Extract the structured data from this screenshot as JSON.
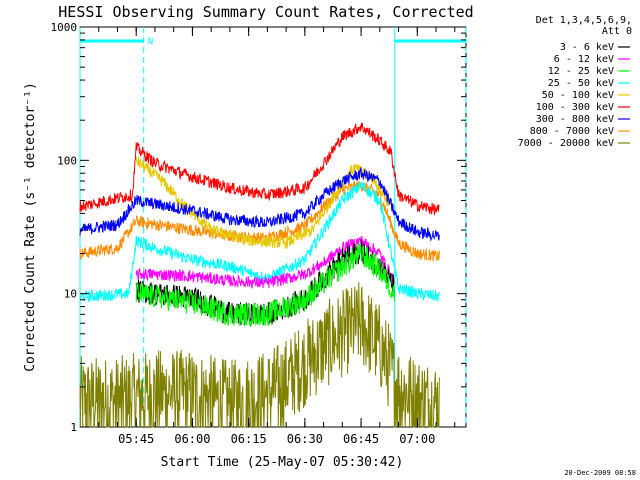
{
  "chart_data": {
    "type": "line",
    "title": "HESSI Observing Summary Count Rates, Corrected",
    "xlabel": "Start Time (25-May-07 05:30:42)",
    "ylabel": "Corrected Count Rate (s⁻¹ detector⁻¹)",
    "y_scale": "log",
    "ylim": [
      1,
      1000
    ],
    "xlim": [
      "05:30",
      "07:13"
    ],
    "x_ticks": [
      "05:45",
      "06:00",
      "06:15",
      "06:30",
      "06:45",
      "07:00"
    ],
    "y_ticks": [
      "1",
      "10",
      "100",
      "1000"
    ],
    "grid": false,
    "legend_placement": "right",
    "legend_header": [
      "Det 1,3,4,5,6,9,",
      "Att 0"
    ],
    "timestamp": "20-Dec-2009 08:58",
    "annotations": [
      {
        "text": "N",
        "time": "05:47"
      }
    ],
    "night_intervals": [
      {
        "start": "05:30",
        "end": "05:47"
      },
      {
        "start": "06:54",
        "end": "07:13"
      }
    ],
    "series": [
      {
        "name": "3 - 6 keV",
        "color": "#000000",
        "x": [
          "05:45",
          "05:50",
          "06:00",
          "06:10",
          "06:20",
          "06:30",
          "06:35",
          "06:40",
          "06:45",
          "06:50",
          "06:54"
        ],
        "y": [
          10.5,
          10,
          9.3,
          7,
          7,
          9,
          13,
          18,
          21,
          16,
          11
        ]
      },
      {
        "name": "6 - 12 keV",
        "color": "#ff00ff",
        "x": [
          "05:45",
          "05:50",
          "06:00",
          "06:10",
          "06:20",
          "06:30",
          "06:35",
          "06:40",
          "06:45",
          "06:50",
          "06:54"
        ],
        "y": [
          14,
          14,
          13.5,
          12.5,
          12,
          14,
          17,
          22,
          25,
          20,
          12
        ]
      },
      {
        "name": "12 - 25 keV",
        "color": "#00ff00",
        "x": [
          "05:45",
          "05:50",
          "06:00",
          "06:10",
          "06:20",
          "06:30",
          "06:35",
          "06:40",
          "06:45",
          "06:50",
          "06:54"
        ],
        "y": [
          10,
          9.5,
          8.5,
          7,
          7,
          9,
          12,
          16,
          20,
          15,
          10
        ]
      },
      {
        "name": "25 - 50 keV",
        "color": "#00ffff",
        "x": [
          "05:30",
          "05:43",
          "05:45",
          "05:50",
          "06:00",
          "06:10",
          "06:20",
          "06:30",
          "06:35",
          "06:40",
          "06:45",
          "06:50",
          "06:55",
          "07:00",
          "07:06"
        ],
        "y": [
          9.5,
          10,
          25,
          22,
          18,
          16,
          13,
          18,
          30,
          50,
          65,
          50,
          11,
          10,
          9.5
        ]
      },
      {
        "name": "50 - 100 keV",
        "color": "#e6c800",
        "x": [
          "05:45",
          "05:47",
          "05:52",
          "05:58",
          "06:05",
          "06:15",
          "06:25",
          "06:32",
          "06:38",
          "06:43",
          "06:48",
          "06:53"
        ],
        "y": [
          100,
          90,
          70,
          45,
          30,
          25,
          24,
          30,
          55,
          88,
          75,
          45
        ]
      },
      {
        "name": "100 - 300 keV",
        "color": "#ff0000",
        "x": [
          "05:30",
          "05:40",
          "05:44",
          "05:45",
          "05:50",
          "06:00",
          "06:10",
          "06:20",
          "06:30",
          "06:35",
          "06:40",
          "06:45",
          "06:50",
          "06:53",
          "06:55",
          "07:00",
          "07:06"
        ],
        "y": [
          45,
          52,
          55,
          125,
          95,
          75,
          62,
          55,
          62,
          95,
          150,
          180,
          140,
          115,
          55,
          46,
          42
        ]
      },
      {
        "name": "300 - 800 keV",
        "color": "#0000ff",
        "x": [
          "05:30",
          "05:40",
          "05:45",
          "05:50",
          "06:00",
          "06:10",
          "06:20",
          "06:30",
          "06:35",
          "06:40",
          "06:45",
          "06:50",
          "06:55",
          "07:00",
          "07:06"
        ],
        "y": [
          30,
          33,
          50,
          47,
          42,
          36,
          34,
          40,
          55,
          70,
          80,
          70,
          35,
          29,
          27
        ]
      },
      {
        "name": "800 - 7000 keV",
        "color": "#ff8c00",
        "x": [
          "05:30",
          "05:40",
          "05:45",
          "05:50",
          "06:00",
          "06:10",
          "06:20",
          "06:30",
          "06:35",
          "06:40",
          "06:45",
          "06:50",
          "06:55",
          "07:00",
          "07:06"
        ],
        "y": [
          20,
          22,
          35,
          33,
          30,
          27,
          26,
          32,
          45,
          60,
          65,
          55,
          24,
          20,
          19
        ]
      },
      {
        "name": "7000 - 20000 keV",
        "color": "#808000",
        "x": [
          "05:30",
          "05:40",
          "05:50",
          "06:00",
          "06:10",
          "06:20",
          "06:25",
          "06:30",
          "06:35",
          "06:40",
          "06:45",
          "06:50",
          "06:55",
          "07:00",
          "07:06"
        ],
        "y": [
          1.6,
          1.6,
          1.8,
          1.8,
          1.5,
          1.8,
          2.2,
          3,
          4,
          5,
          6,
          4,
          2,
          1.6,
          1.5
        ]
      }
    ]
  }
}
